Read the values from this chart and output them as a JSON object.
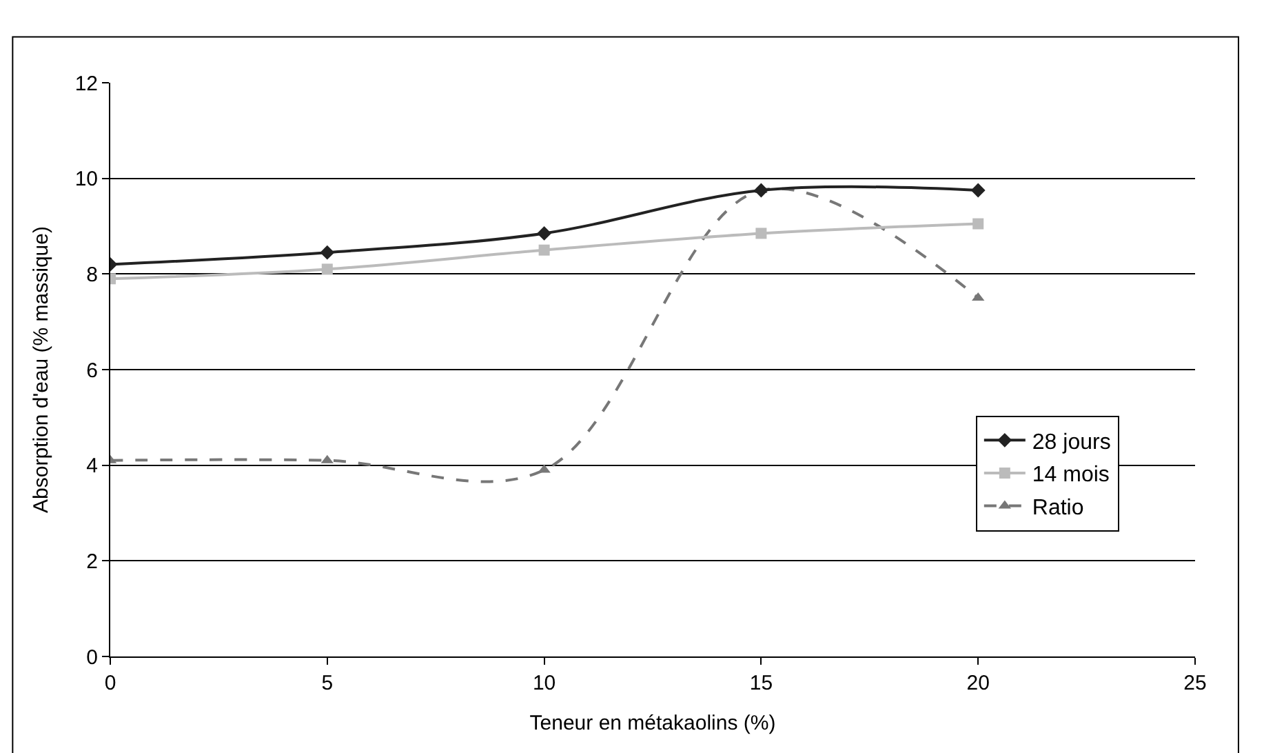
{
  "chart_data": {
    "type": "line",
    "xlabel": "Teneur en métakaolins (%)",
    "ylabel": "Absorption d'eau (% massique)",
    "x": [
      0,
      5,
      10,
      15,
      20
    ],
    "series": [
      {
        "name": "28 jours",
        "color": "#222222",
        "values": [
          8.2,
          8.45,
          8.85,
          9.75,
          9.75
        ],
        "marker": "diamond",
        "line_style": "solid"
      },
      {
        "name": "14 mois",
        "color": "#bbbbbb",
        "values": [
          7.9,
          8.1,
          8.5,
          8.85,
          9.05
        ],
        "marker": "square",
        "line_style": "solid"
      },
      {
        "name": "Ratio",
        "color": "#777777",
        "values": [
          4.1,
          4.1,
          3.9,
          9.75,
          7.5
        ],
        "marker": "triangle",
        "line_style": "dashed"
      }
    ],
    "xlim": [
      0,
      25
    ],
    "xticks": [
      0,
      5,
      10,
      15,
      20,
      25
    ],
    "ylim": [
      0,
      12
    ],
    "yticks": [
      0,
      2,
      4,
      6,
      8,
      10,
      12
    ],
    "grid": "y",
    "legend": "right"
  }
}
